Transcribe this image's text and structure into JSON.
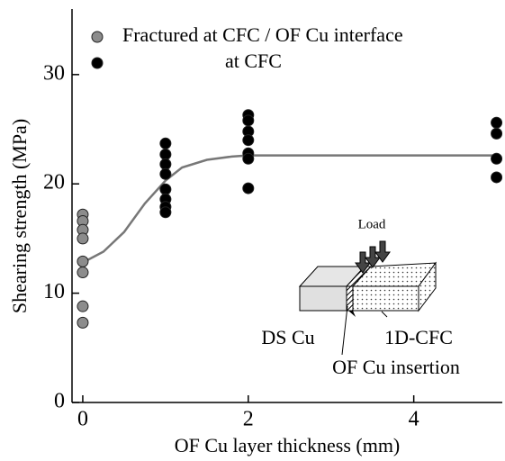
{
  "chart_data": {
    "type": "scatter",
    "x_label": "OF Cu layer thickness (mm)",
    "y_label": "Shearing strength (MPa)",
    "xlim": [
      -0.13,
      5.07
    ],
    "ylim": [
      0,
      36
    ],
    "xticks": [
      0,
      2,
      4
    ],
    "yticks": [
      0,
      10,
      20,
      30
    ],
    "series": [
      {
        "name": "Fractured at CFC / OF Cu interface",
        "color": "#8c8c8c",
        "x": [
          0,
          0,
          0,
          0,
          0,
          0,
          0,
          0
        ],
        "values": [
          17.2,
          16.6,
          15.8,
          15.0,
          12.9,
          11.9,
          8.8,
          7.3
        ]
      },
      {
        "name": "at CFC",
        "color": "#000000",
        "x": [
          1,
          1,
          1,
          1,
          1,
          1,
          1,
          1,
          2,
          2,
          2,
          2,
          2,
          2,
          2,
          5,
          5,
          5,
          5
        ],
        "values": [
          23.7,
          22.7,
          21.8,
          20.9,
          19.5,
          18.6,
          17.9,
          17.4,
          26.3,
          25.8,
          24.8,
          24.0,
          22.8,
          22.3,
          19.6,
          25.6,
          24.6,
          22.3,
          20.6
        ]
      }
    ],
    "fit": {
      "color": "#777777",
      "x": [
        0,
        0.25,
        0.5,
        0.75,
        1,
        1.2,
        1.5,
        1.8,
        2,
        3,
        4,
        5
      ],
      "values": [
        12.8,
        13.8,
        15.6,
        18.2,
        20.3,
        21.5,
        22.2,
        22.5,
        22.6,
        22.6,
        22.6,
        22.6
      ]
    },
    "annotations": [
      "Load",
      "DS Cu",
      "1D-CFC",
      "OF Cu insertion"
    ]
  }
}
